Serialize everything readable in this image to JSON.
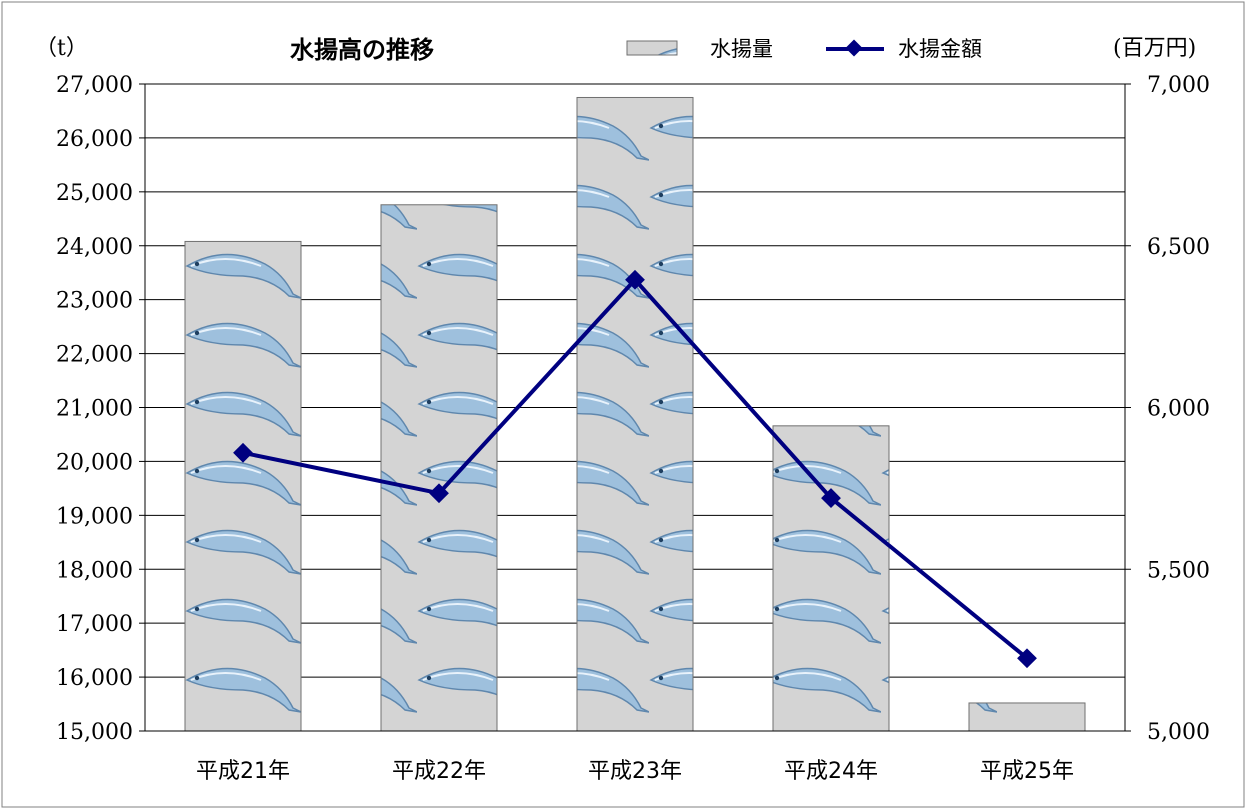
{
  "chart_data": {
    "type": "bar",
    "title": "水揚高の推移",
    "categories": [
      "平成21年",
      "平成22年",
      "平成23年",
      "平成24年",
      "平成25年"
    ],
    "series": [
      {
        "name": "水揚量",
        "kind": "bar",
        "axis": "left",
        "values": [
          24080,
          24760,
          26750,
          20660,
          15520
        ]
      },
      {
        "name": "水揚金額",
        "kind": "line",
        "axis": "right",
        "values": [
          5860,
          5735,
          6395,
          5720,
          5225
        ]
      }
    ],
    "left_axis": {
      "unit": "（t）",
      "range": [
        15000,
        27000
      ],
      "ticks": [
        "15,000",
        "16,000",
        "17,000",
        "18,000",
        "19,000",
        "20,000",
        "21,000",
        "22,000",
        "23,000",
        "24,000",
        "25,000",
        "26,000",
        "27,000"
      ]
    },
    "right_axis": {
      "unit": "(百万円)",
      "range": [
        5000,
        7000
      ],
      "ticks": [
        "5,000",
        "5,500",
        "6,000",
        "6,500",
        "7,000"
      ]
    },
    "grid": true,
    "legend_position": "top-right",
    "colors": {
      "bar_fill": "#d4d4d4",
      "bar_stroke": "#6f6f6f",
      "fish": "#7fa9cf",
      "line": "#000080",
      "grid": "#000000",
      "border": "#808080"
    }
  }
}
